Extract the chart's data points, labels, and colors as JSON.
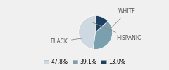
{
  "labels": [
    "WHITE",
    "BLACK",
    "HISPANIC"
  ],
  "values": [
    47.8,
    39.1,
    13.0
  ],
  "colors": [
    "#cdd8e0",
    "#7a9faf",
    "#1e4060"
  ],
  "legend_labels": [
    "47.8%",
    "39.1%",
    "13.0%"
  ],
  "startangle": 90,
  "bg_color": "#f0f0f0",
  "figsize": [
    2.4,
    1.0
  ],
  "dpi": 100,
  "label_fontsize": 5.5,
  "label_color": "#555555"
}
